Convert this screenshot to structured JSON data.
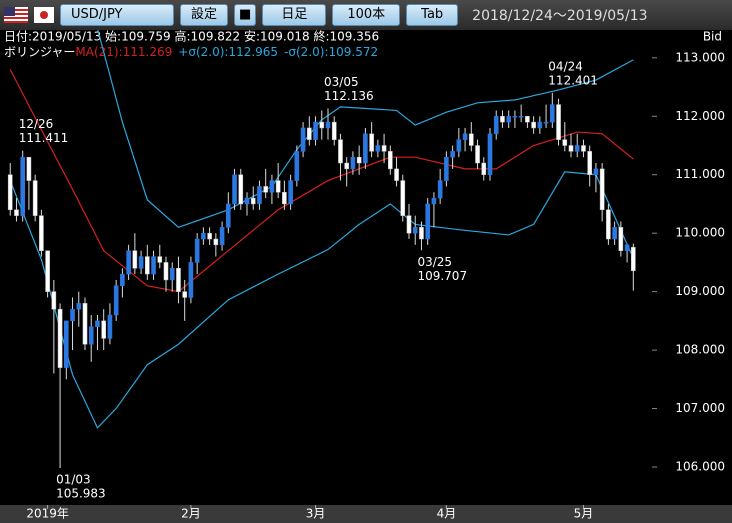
{
  "header": {
    "pair": "USD/JPY",
    "buttons": [
      "設定",
      "日足",
      "100本",
      "Tab"
    ],
    "range": "2018/12/24～2019/05/13"
  },
  "chart_data": {
    "type": "candlestick",
    "info": "日付:2019/05/13 始:109.759 高:109.822 安:109.018 終:109.356",
    "indicator_label": "ボリンジャー",
    "price_label": "Bid",
    "ylim": [
      105.35,
      113.51
    ],
    "xlim": [
      -1,
      103
    ],
    "yticks": [
      {
        "value": 106,
        "label": "106.000"
      },
      {
        "value": 107,
        "label": "107.000"
      },
      {
        "value": 108,
        "label": "108.000"
      },
      {
        "value": 109,
        "label": "109.000"
      },
      {
        "value": 110,
        "label": "110.000"
      },
      {
        "value": 111,
        "label": "111.000"
      },
      {
        "value": 112,
        "label": "112.000"
      },
      {
        "value": 113,
        "label": "113.000"
      }
    ],
    "xticks": [
      {
        "value": 6,
        "label": "2019年"
      },
      {
        "value": 29,
        "label": "2月"
      },
      {
        "value": 49,
        "label": "3月"
      },
      {
        "value": 70,
        "label": "4月"
      },
      {
        "value": 92,
        "label": "5月"
      }
    ],
    "up_color": "#2a78e0",
    "down_color": "#ffffff",
    "open": [
      111.0,
      110.4,
      110.3,
      111.3,
      110.9,
      110.3,
      109.7,
      109.0,
      108.7,
      107.7,
      108.5,
      108.7,
      108.8,
      108.1,
      108.4,
      108.5,
      108.2,
      108.6,
      109.1,
      109.3,
      109.7,
      109.4,
      109.6,
      109.3,
      109.6,
      109.5,
      109.2,
      109.4,
      109.0,
      108.9,
      109.5,
      109.9,
      110.0,
      109.9,
      109.8,
      110.1,
      110.5,
      111.0,
      110.5,
      110.6,
      110.5,
      110.8,
      110.7,
      110.9,
      110.7,
      110.5,
      110.9,
      111.4,
      111.8,
      111.6,
      111.9,
      111.8,
      111.9,
      111.6,
      111.2,
      111.1,
      111.3,
      111.2,
      111.7,
      111.4,
      111.5,
      111.4,
      111.1,
      110.9,
      110.3,
      110.0,
      110.1,
      109.9,
      110.5,
      110.6,
      110.9,
      111.3,
      111.4,
      111.6,
      111.7,
      111.5,
      111.2,
      111.0,
      111.7,
      112.0,
      111.9,
      112.0,
      112.0,
      112.0,
      111.9,
      111.8,
      111.9,
      111.9,
      112.2,
      111.6,
      111.5,
      111.4,
      111.5,
      111.4,
      111.0,
      111.1,
      110.4,
      109.9,
      110.1,
      109.7,
      109.759
    ],
    "high": [
      111.2,
      110.6,
      111.411,
      111.3,
      111.0,
      110.4,
      109.7,
      109.2,
      108.8,
      108.5,
      108.9,
      109.0,
      108.9,
      108.6,
      108.6,
      108.7,
      108.8,
      109.2,
      109.4,
      109.8,
      110.0,
      109.7,
      109.8,
      109.7,
      109.8,
      109.6,
      109.5,
      109.6,
      109.2,
      109.6,
      110.0,
      110.1,
      110.1,
      110.0,
      110.2,
      110.7,
      111.1,
      111.1,
      110.7,
      110.8,
      110.9,
      111.1,
      111.0,
      111.2,
      110.9,
      111.0,
      111.5,
      111.9,
      112.0,
      112.0,
      112.1,
      112.136,
      112.0,
      111.7,
      111.3,
      111.4,
      111.5,
      111.8,
      111.9,
      111.6,
      111.7,
      111.5,
      111.3,
      111.0,
      110.5,
      110.3,
      110.2,
      110.6,
      110.7,
      111.1,
      111.4,
      111.5,
      111.8,
      111.8,
      111.9,
      111.6,
      111.3,
      111.8,
      112.1,
      112.1,
      112.1,
      112.1,
      112.2,
      112.0,
      112.0,
      112.0,
      112.2,
      112.401,
      112.3,
      111.9,
      111.7,
      111.7,
      111.6,
      111.5,
      111.2,
      111.2,
      110.5,
      110.2,
      110.2,
      109.8,
      109.822
    ],
    "low": [
      110.3,
      110.2,
      110.2,
      110.4,
      110.2,
      109.6,
      108.9,
      107.6,
      105.983,
      107.5,
      108.0,
      108.4,
      108.0,
      107.8,
      108.0,
      108.0,
      108.1,
      108.5,
      108.9,
      109.2,
      109.3,
      109.3,
      109.2,
      109.2,
      109.4,
      109.0,
      109.0,
      108.8,
      108.5,
      108.8,
      109.3,
      109.8,
      109.8,
      109.6,
      109.7,
      110.0,
      110.4,
      110.4,
      110.3,
      110.4,
      110.4,
      110.6,
      110.5,
      110.6,
      110.4,
      110.4,
      110.8,
      111.3,
      111.5,
      111.5,
      111.6,
      111.6,
      111.5,
      110.9,
      110.8,
      111.0,
      111.0,
      111.1,
      111.3,
      111.3,
      111.2,
      111.0,
      110.8,
      110.2,
      109.9,
      109.8,
      109.707,
      109.8,
      110.1,
      110.5,
      110.8,
      111.1,
      111.3,
      111.4,
      111.4,
      111.1,
      110.9,
      110.9,
      111.6,
      111.8,
      111.8,
      111.8,
      111.9,
      111.8,
      111.7,
      111.7,
      111.8,
      111.8,
      111.5,
      111.4,
      111.3,
      111.3,
      111.3,
      110.8,
      110.7,
      110.2,
      109.8,
      109.8,
      109.6,
      109.5,
      109.018
    ],
    "close": [
      110.4,
      110.3,
      111.3,
      110.9,
      110.3,
      109.7,
      109.0,
      108.7,
      107.7,
      108.5,
      108.7,
      108.8,
      108.1,
      108.4,
      108.5,
      108.2,
      108.6,
      109.1,
      109.3,
      109.7,
      109.4,
      109.6,
      109.3,
      109.6,
      109.5,
      109.2,
      109.4,
      109.0,
      108.9,
      109.5,
      109.9,
      110.0,
      109.9,
      109.8,
      110.1,
      110.5,
      111.0,
      110.5,
      110.6,
      110.5,
      110.8,
      110.7,
      110.9,
      110.7,
      110.5,
      110.9,
      111.4,
      111.8,
      111.6,
      111.9,
      111.8,
      111.9,
      111.6,
      111.2,
      111.1,
      111.3,
      111.2,
      111.7,
      111.4,
      111.5,
      111.4,
      111.1,
      110.9,
      110.3,
      110.0,
      110.1,
      109.9,
      110.5,
      110.6,
      110.9,
      111.3,
      111.4,
      111.6,
      111.7,
      111.5,
      111.2,
      111.0,
      111.7,
      112.0,
      111.9,
      112.0,
      112.0,
      112.0,
      111.9,
      111.8,
      111.9,
      111.9,
      112.2,
      111.6,
      111.5,
      111.4,
      111.5,
      111.4,
      111.0,
      111.1,
      110.4,
      109.9,
      110.1,
      109.7,
      109.8,
      109.356
    ],
    "bands": [
      {
        "name": "MA(21)",
        "legend_label": "MA(21):111.269",
        "color": "#d42020",
        "x": [
          0,
          5,
          10,
          15,
          22,
          27,
          35,
          43,
          51,
          61,
          65,
          73,
          78,
          84,
          91,
          95,
          100
        ],
        "values": [
          112.8,
          111.77,
          110.75,
          109.7,
          109.1,
          109.0,
          109.7,
          110.4,
          110.9,
          111.3,
          111.3,
          111.1,
          111.1,
          111.5,
          111.73,
          111.7,
          111.269
        ]
      },
      {
        "name": "+σ(2.0)",
        "legend_label": "+σ(2.0):112.965",
        "color": "#2aa8e0",
        "x": [
          14,
          18,
          22,
          27,
          35,
          42,
          46,
          50,
          53,
          62,
          65,
          70,
          75,
          81,
          88,
          94,
          100
        ],
        "values": [
          113.5,
          111.9,
          110.57,
          110.1,
          110.4,
          110.8,
          111.43,
          111.94,
          112.16,
          112.1,
          111.85,
          112.07,
          112.23,
          112.28,
          112.45,
          112.62,
          112.965
        ]
      },
      {
        "name": "-σ(2.0)",
        "legend_label": "-σ(2.0):109.572",
        "color": "#2aa8e0",
        "x": [
          0,
          5,
          10,
          14,
          17,
          22,
          27,
          35,
          43,
          51,
          56,
          61,
          65,
          72,
          80,
          84,
          89,
          94,
          100
        ],
        "values": [
          110.9,
          109.55,
          107.58,
          106.67,
          107.0,
          107.75,
          108.1,
          108.86,
          109.3,
          109.72,
          110.15,
          110.5,
          110.15,
          110.06,
          109.97,
          110.15,
          111.05,
          111.0,
          109.572
        ]
      }
    ],
    "annotations": [
      {
        "date": "12/26",
        "value": 111.411
      },
      {
        "date": "01/03",
        "value": 105.983
      },
      {
        "date": "03/05",
        "value": 112.136
      },
      {
        "date": "03/25",
        "value": 109.707
      },
      {
        "date": "04/24",
        "value": 112.401
      }
    ]
  }
}
